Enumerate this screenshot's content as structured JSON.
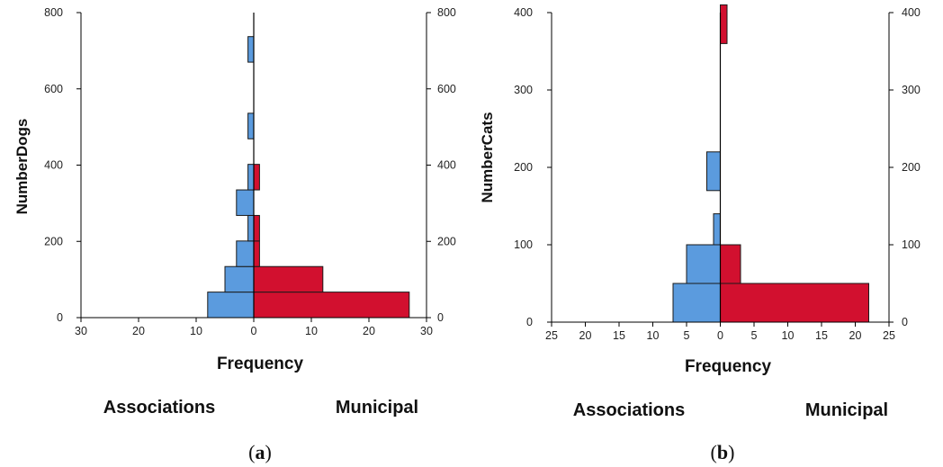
{
  "colors": {
    "left_bars": "#5b9bde",
    "right_bars": "#d2102f",
    "bar_edge": "#1a1a1a",
    "axis": "#000000"
  },
  "chart_data": [
    {
      "type": "bar",
      "orientation": "horizontal",
      "chart_kind": "population pyramid histogram",
      "panel_label": "(a)",
      "panel_letter": "a",
      "ylabel": "NumberDogs",
      "xlabel": "Frequency",
      "group_labels": [
        "Associations",
        "Municipal"
      ],
      "y_ticks": [
        "0",
        "200",
        "400",
        "600",
        "800"
      ],
      "y_tick_values": [
        0,
        200,
        400,
        600,
        800
      ],
      "ylim": [
        0,
        800
      ],
      "x_ticks_left": [
        "30",
        "20",
        "10",
        "0"
      ],
      "x_ticks_right": [
        "0",
        "10",
        "20",
        "30"
      ],
      "x_tick_values": [
        30,
        20,
        10,
        0,
        10,
        20,
        30
      ],
      "xlim": [
        -30,
        30
      ],
      "bin_width": 67,
      "series": [
        {
          "name": "Associations",
          "side": "left",
          "bars": [
            {
              "bin_start": 0,
              "bin_end": 67,
              "count": 8
            },
            {
              "bin_start": 67,
              "bin_end": 134,
              "count": 5
            },
            {
              "bin_start": 134,
              "bin_end": 201,
              "count": 3
            },
            {
              "bin_start": 201,
              "bin_end": 268,
              "count": 1
            },
            {
              "bin_start": 268,
              "bin_end": 335,
              "count": 3
            },
            {
              "bin_start": 335,
              "bin_end": 402,
              "count": 1
            },
            {
              "bin_start": 469,
              "bin_end": 536,
              "count": 1
            },
            {
              "bin_start": 670,
              "bin_end": 737,
              "count": 1
            }
          ]
        },
        {
          "name": "Municipal",
          "side": "right",
          "bars": [
            {
              "bin_start": 0,
              "bin_end": 67,
              "count": 27
            },
            {
              "bin_start": 67,
              "bin_end": 134,
              "count": 12
            },
            {
              "bin_start": 134,
              "bin_end": 201,
              "count": 1
            },
            {
              "bin_start": 201,
              "bin_end": 268,
              "count": 1
            },
            {
              "bin_start": 335,
              "bin_end": 402,
              "count": 1
            }
          ]
        }
      ]
    },
    {
      "type": "bar",
      "orientation": "horizontal",
      "chart_kind": "population pyramid histogram",
      "panel_label": "(b)",
      "panel_letter": "b",
      "ylabel": "NumberCats",
      "xlabel": "Frequency",
      "group_labels": [
        "Associations",
        "Municipal"
      ],
      "y_ticks": [
        "0",
        "100",
        "200",
        "300",
        "400"
      ],
      "y_tick_values": [
        0,
        100,
        200,
        300,
        400
      ],
      "ylim": [
        0,
        400
      ],
      "x_ticks_left": [
        "25",
        "20",
        "15",
        "10",
        "5",
        "0"
      ],
      "x_ticks_right": [
        "0",
        "5",
        "10",
        "15",
        "20",
        "25"
      ],
      "x_tick_values": [
        25,
        20,
        15,
        10,
        5,
        0,
        5,
        10,
        15,
        20,
        25
      ],
      "xlim": [
        -25,
        25
      ],
      "bin_width": 50,
      "series": [
        {
          "name": "Associations",
          "side": "left",
          "bars": [
            {
              "bin_start": 0,
              "bin_end": 50,
              "count": 7
            },
            {
              "bin_start": 50,
              "bin_end": 100,
              "count": 5
            },
            {
              "bin_start": 100,
              "bin_end": 140,
              "count": 1
            },
            {
              "bin_start": 170,
              "bin_end": 220,
              "count": 2
            }
          ]
        },
        {
          "name": "Municipal",
          "side": "right",
          "bars": [
            {
              "bin_start": 0,
              "bin_end": 50,
              "count": 22
            },
            {
              "bin_start": 50,
              "bin_end": 100,
              "count": 3
            },
            {
              "bin_start": 360,
              "bin_end": 410,
              "count": 1
            }
          ]
        }
      ]
    }
  ]
}
